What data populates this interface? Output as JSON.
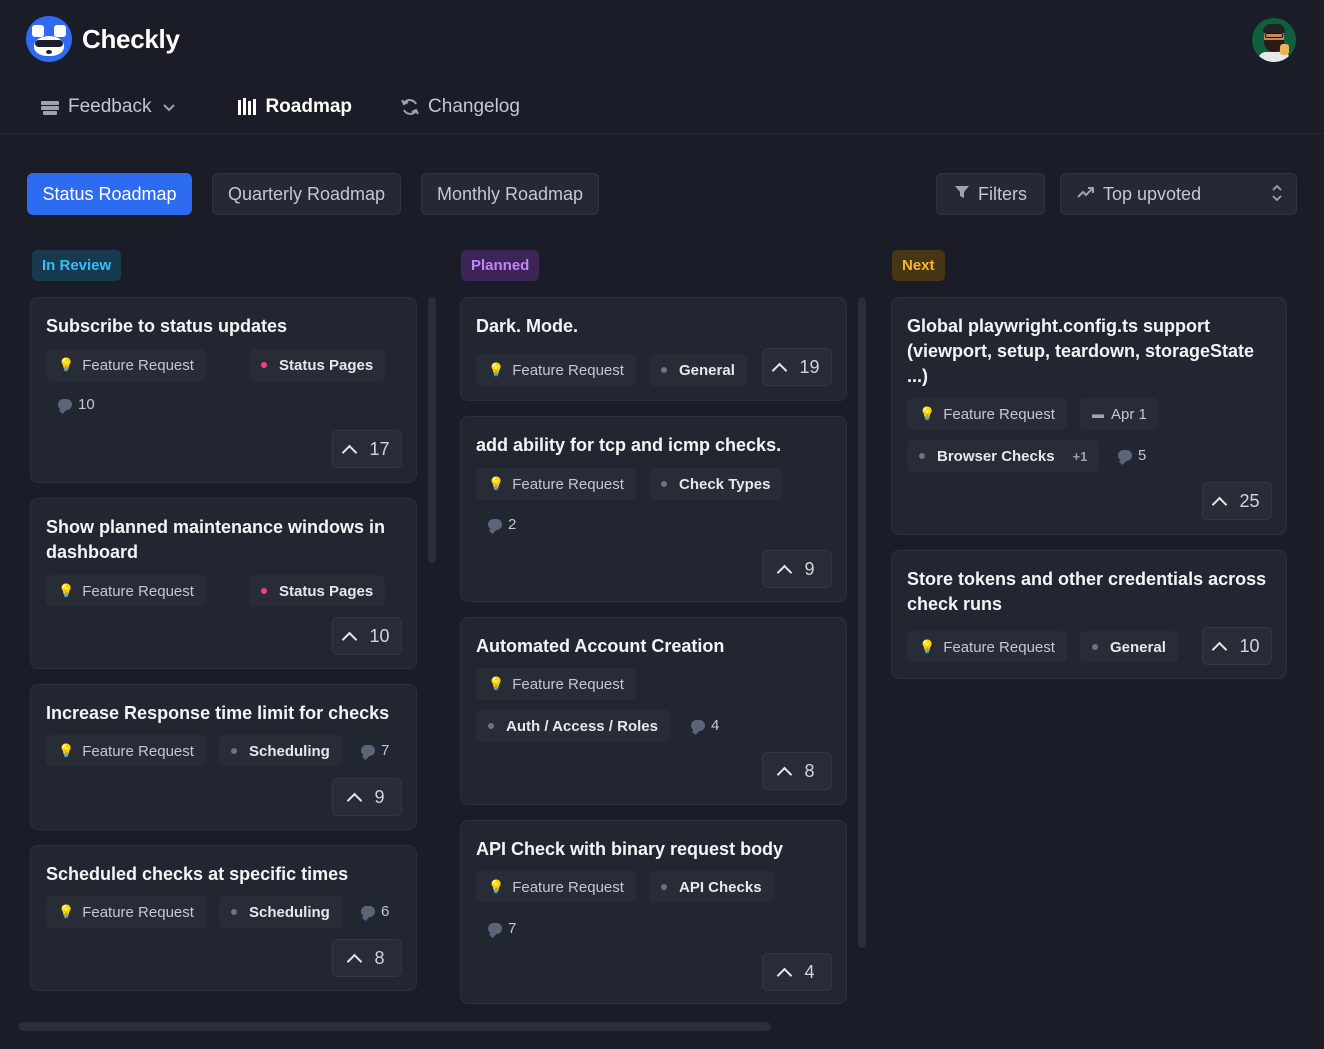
{
  "brand": {
    "name": "Checkly"
  },
  "nav": [
    {
      "label": "Feedback",
      "icon": "stack-icon"
    },
    {
      "label": "Roadmap",
      "icon": "roadmap-icon"
    },
    {
      "label": "Changelog",
      "icon": "refresh-icon"
    }
  ],
  "views": [
    "Status Roadmap",
    "Quarterly Roadmap",
    "Monthly Roadmap"
  ],
  "active_view": "Status Roadmap",
  "filters_label": "Filters",
  "sort_label": "Top upvoted",
  "colors": {
    "accent": "#2d6cf0",
    "in_review": "#38bdf8",
    "planned": "#c084fc",
    "next": "#f5b82e",
    "background": "#1a1d27"
  },
  "columns": [
    {
      "status": "In Review",
      "cards": [
        {
          "title": "Subscribe to status updates",
          "tags": [
            "Feature Request",
            "Status Pages"
          ],
          "comments": "10",
          "votes": "17"
        },
        {
          "title": "Show planned maintenance windows in dashboard",
          "tags": [
            "Feature Request",
            "Status Pages"
          ],
          "votes": "10"
        },
        {
          "title": "Increase Response time limit for checks",
          "tags": [
            "Feature Request",
            "Scheduling"
          ],
          "comments": "7",
          "votes": "9"
        },
        {
          "title": "Scheduled checks at specific times",
          "tags": [
            "Feature Request",
            "Scheduling"
          ],
          "comments": "6",
          "votes": "8"
        }
      ]
    },
    {
      "status": "Planned",
      "cards": [
        {
          "title": "Dark. Mode.",
          "tags": [
            "Feature Request",
            "General"
          ],
          "votes": "19"
        },
        {
          "title": "add ability for tcp and icmp checks.",
          "tags": [
            "Feature Request",
            "Check Types"
          ],
          "comments": "2",
          "votes": "9"
        },
        {
          "title": "Automated Account Creation",
          "tags": [
            "Feature Request",
            "Auth / Access / Roles"
          ],
          "comments": "4",
          "votes": "8"
        },
        {
          "title": "API Check with binary request body",
          "tags": [
            "Feature Request",
            "API Checks"
          ],
          "comments": "7",
          "votes": "4"
        }
      ]
    },
    {
      "status": "Next",
      "cards": [
        {
          "title": "Global playwright.config.ts support (viewport, setup, teardown, storageState ...)",
          "tags": [
            "Feature Request",
            "Apr 1",
            "Browser Checks",
            "+1"
          ],
          "comments": "5",
          "votes": "25"
        },
        {
          "title": "Store tokens and other credentials across check runs",
          "tags": [
            "Feature Request",
            "General"
          ],
          "votes": "10"
        }
      ]
    }
  ]
}
